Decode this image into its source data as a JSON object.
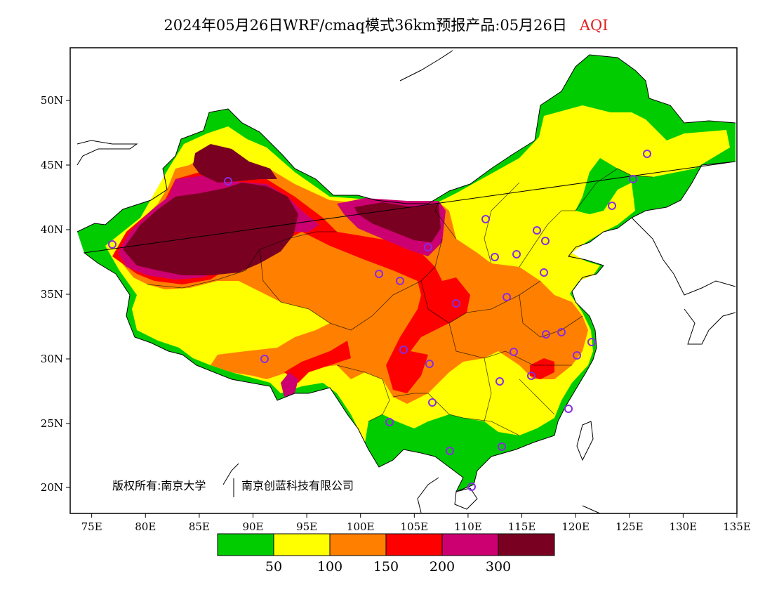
{
  "header": {
    "title": "2024年05月26日WRF/cmaq模式36km预报产品:05月26日",
    "variable": "AQI"
  },
  "map": {
    "lon_labels": [
      "75E",
      "80E",
      "85E",
      "90E",
      "95E",
      "100E",
      "105E",
      "110E",
      "115E",
      "120E",
      "125E",
      "130E",
      "135E"
    ],
    "lat_labels": [
      "50N",
      "45N",
      "40N",
      "35N",
      "30N",
      "25N",
      "20N"
    ],
    "copyright_owner": "版权所有:南京大学",
    "copyright_company": "南京创蓝科技有限公司",
    "lon_range": [
      73,
      135
    ],
    "lat_range": [
      18,
      54
    ]
  },
  "legend": {
    "colors": [
      "#00cc00",
      "#ffff00",
      "#ff8000",
      "#ff0000",
      "#cc0070",
      "#7a0022"
    ],
    "labels": [
      "50",
      "100",
      "150",
      "200",
      "300"
    ]
  },
  "colors": {
    "good": "#00cc00",
    "moderate": "#ffff00",
    "usg": "#ff8000",
    "unhealthy": "#ff0000",
    "very_unhealthy": "#cc0070",
    "hazardous": "#7a0022",
    "station_marker": "#8a2be2"
  }
}
